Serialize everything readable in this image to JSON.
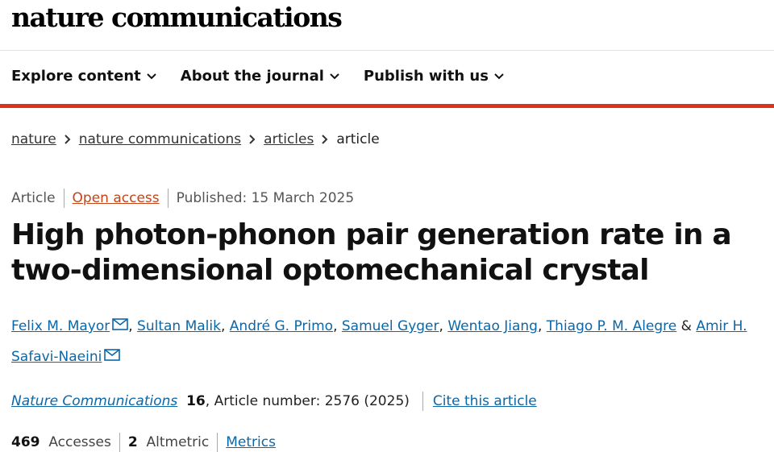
{
  "header": {
    "logo": "nature communications",
    "nav": [
      "Explore content",
      "About the journal",
      "Publish with us"
    ]
  },
  "breadcrumb": [
    "nature",
    "nature communications",
    "articles",
    "article"
  ],
  "article": {
    "type": "Article",
    "access": "Open access",
    "published": "Published: 15 March 2025",
    "title": "High photon-phonon pair generation rate in a two-dimensional optomechanical crystal",
    "authors": [
      {
        "name": "Felix M. Mayor",
        "corresponding": true
      },
      {
        "name": "Sultan Malik",
        "corresponding": false
      },
      {
        "name": "André G. Primo",
        "corresponding": false
      },
      {
        "name": "Samuel Gyger",
        "corresponding": false
      },
      {
        "name": "Wentao Jiang",
        "corresponding": false
      },
      {
        "name": "Thiago P. M. Alegre",
        "corresponding": false
      },
      {
        "name": "Amir H. Safavi-Naeini",
        "corresponding": true
      }
    ],
    "author_separator": ",",
    "author_conjunction": "&",
    "journal": "Nature Communications",
    "volume": 16,
    "article_number": ", Article number: 2576 (2025)",
    "cite": "Cite this article",
    "metrics": {
      "accesses": 469,
      "accesses_label": "Accesses",
      "altmetric": 2,
      "altmetric_label": "Altmetric",
      "link": "Metrics"
    }
  }
}
